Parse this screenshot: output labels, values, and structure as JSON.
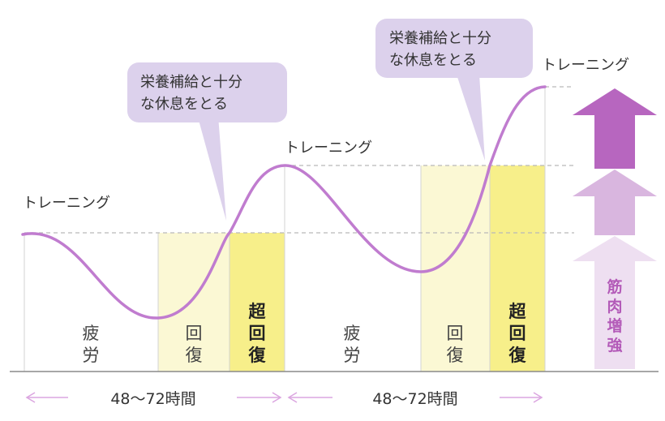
{
  "labels": {
    "training": "トレーニング",
    "bubble_line1": "栄養補給と十分",
    "bubble_line2": "な休息をとる",
    "fatigue": [
      "疲",
      "労"
    ],
    "recovery": [
      "回",
      "復"
    ],
    "super_recovery": [
      "超",
      "回",
      "復"
    ],
    "muscle": [
      "筋",
      "肉",
      "増",
      "強"
    ],
    "duration": "48〜72時間"
  },
  "colors": {
    "curve": "#c07ccf",
    "bubble": "#dcd1ec",
    "recovery_zone": "#fbf8d4",
    "super_zone": "#f7ef8a",
    "arrow_dark": "#b766bf",
    "arrow_mid": "#d9b6df",
    "arrow_light": "#eedff1",
    "muscle_text": "#b35ab8",
    "duration_arrow": "#dba6e0"
  }
}
